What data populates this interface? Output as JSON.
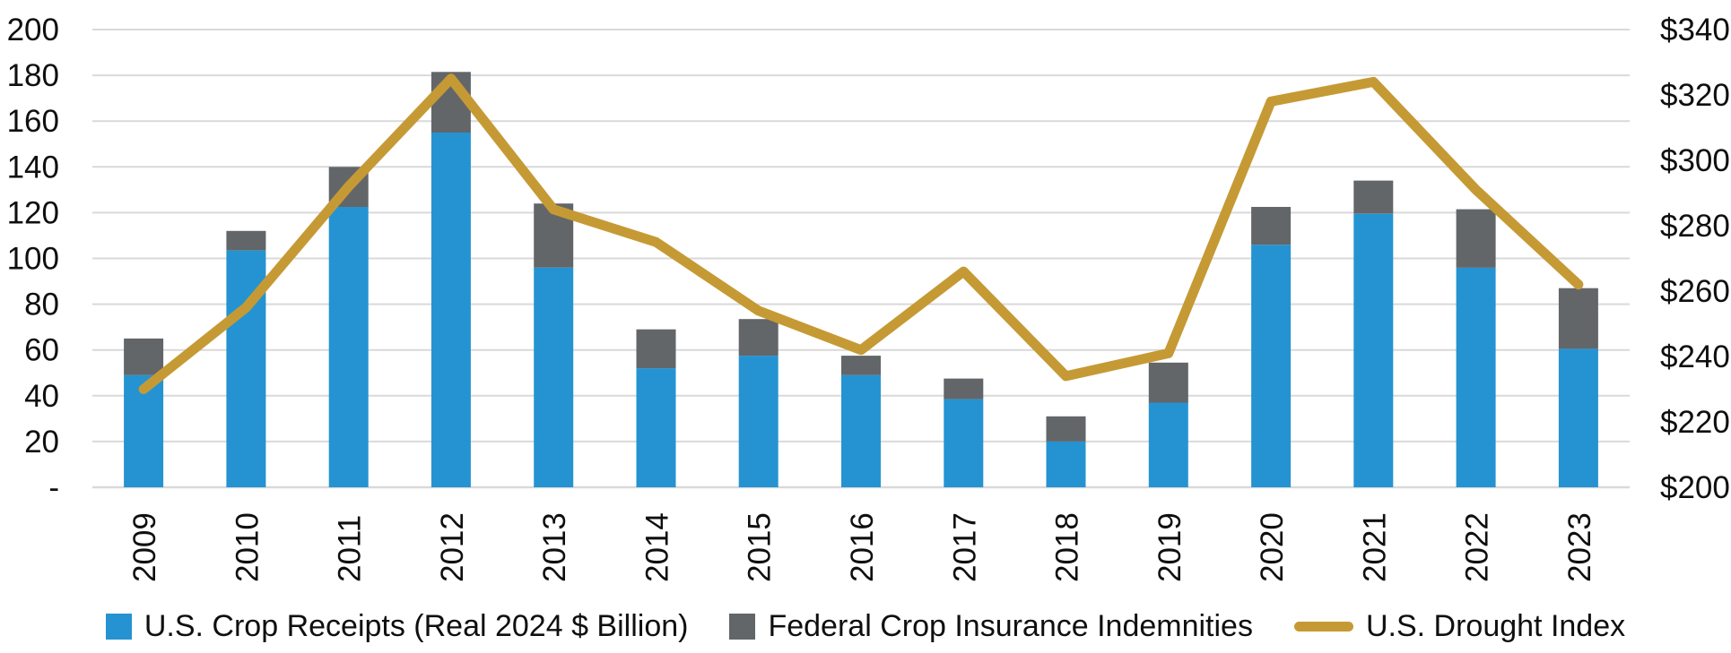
{
  "chart_data": {
    "type": "bar",
    "subtype": "stacked-bar-with-line-combo",
    "title": "",
    "categories": [
      "2009",
      "2010",
      "2011",
      "2012",
      "2013",
      "2014",
      "2015",
      "2016",
      "2017",
      "2018",
      "2019",
      "2020",
      "2021",
      "2022",
      "2023"
    ],
    "series": [
      {
        "name": "U.S. Crop Receipts (Real 2024 $ Billion)",
        "type": "bar",
        "stack": "total",
        "axis": "left",
        "color": "#2593D1",
        "values": [
          49,
          103.5,
          122.5,
          155,
          96,
          52,
          57.5,
          49,
          38.5,
          20,
          37,
          106,
          119.5,
          96,
          60.5
        ]
      },
      {
        "name": "Federal Crop Insurance Indemnities",
        "type": "bar",
        "stack": "total",
        "axis": "left",
        "color": "#626669",
        "values": [
          16,
          8.5,
          17.5,
          26.5,
          28,
          17,
          16,
          8.5,
          9,
          11,
          17.5,
          16.5,
          14.5,
          25.5,
          26.5
        ]
      },
      {
        "name": "U.S. Drought Index",
        "type": "line",
        "axis": "right",
        "color": "#C59A35",
        "values": [
          230,
          255,
          292,
          325,
          285,
          275,
          254,
          242,
          266,
          234,
          241,
          318,
          324,
          291,
          262
        ]
      }
    ],
    "left_axis": {
      "min": 0,
      "max": 200,
      "step": 20,
      "tick_labels": [
        "-",
        "20",
        "40",
        "60",
        "80",
        "100",
        "120",
        "140",
        "160",
        "180",
        "200"
      ]
    },
    "right_axis": {
      "min": 200,
      "max": 340,
      "step": 20,
      "tick_labels": [
        "$200",
        "$220",
        "$240",
        "$260",
        "$280",
        "$300",
        "$320",
        "$340"
      ]
    },
    "grid": true,
    "gridline_color": "#D9D9D9",
    "legend_position": "bottom",
    "x_label_rotation": -90
  },
  "legend": {
    "items": [
      {
        "label": "U.S. Crop Receipts (Real 2024 $ Billion)",
        "marker": "square",
        "color": "#2593D1"
      },
      {
        "label": "Federal Crop Insurance Indemnities",
        "marker": "square",
        "color": "#626669"
      },
      {
        "label": "U.S. Drought Index",
        "marker": "line",
        "color": "#C59A35"
      }
    ]
  }
}
